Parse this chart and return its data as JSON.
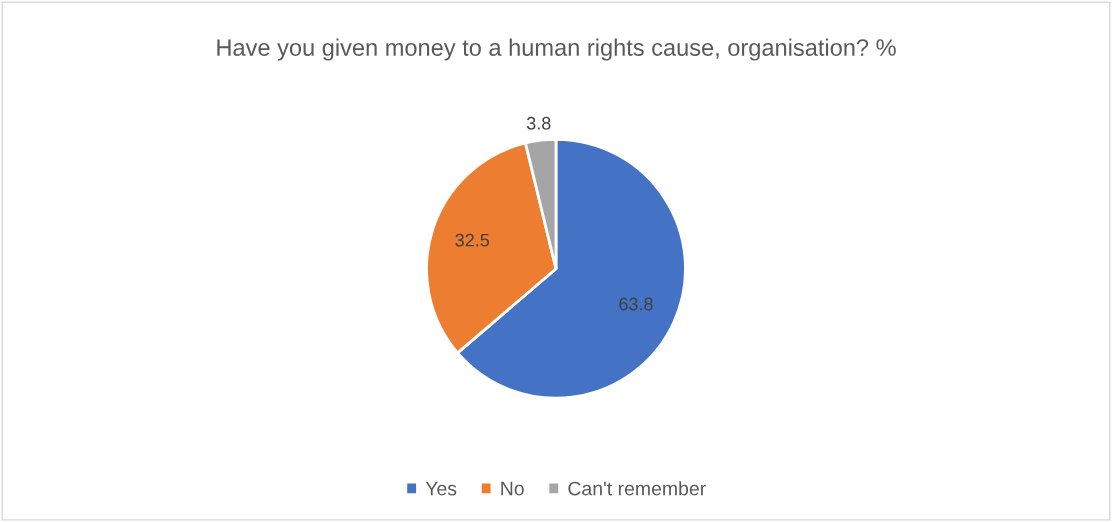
{
  "chart_data": {
    "type": "pie",
    "title": "Have you given money to a human rights cause, organisation? %",
    "categories": [
      "Yes",
      "No",
      "Can't remember"
    ],
    "values": [
      63.8,
      32.5,
      3.8
    ],
    "colors": [
      "#4472c4",
      "#ed7d31",
      "#a5a5a5"
    ],
    "data_labels": true,
    "legend": "bottom"
  }
}
